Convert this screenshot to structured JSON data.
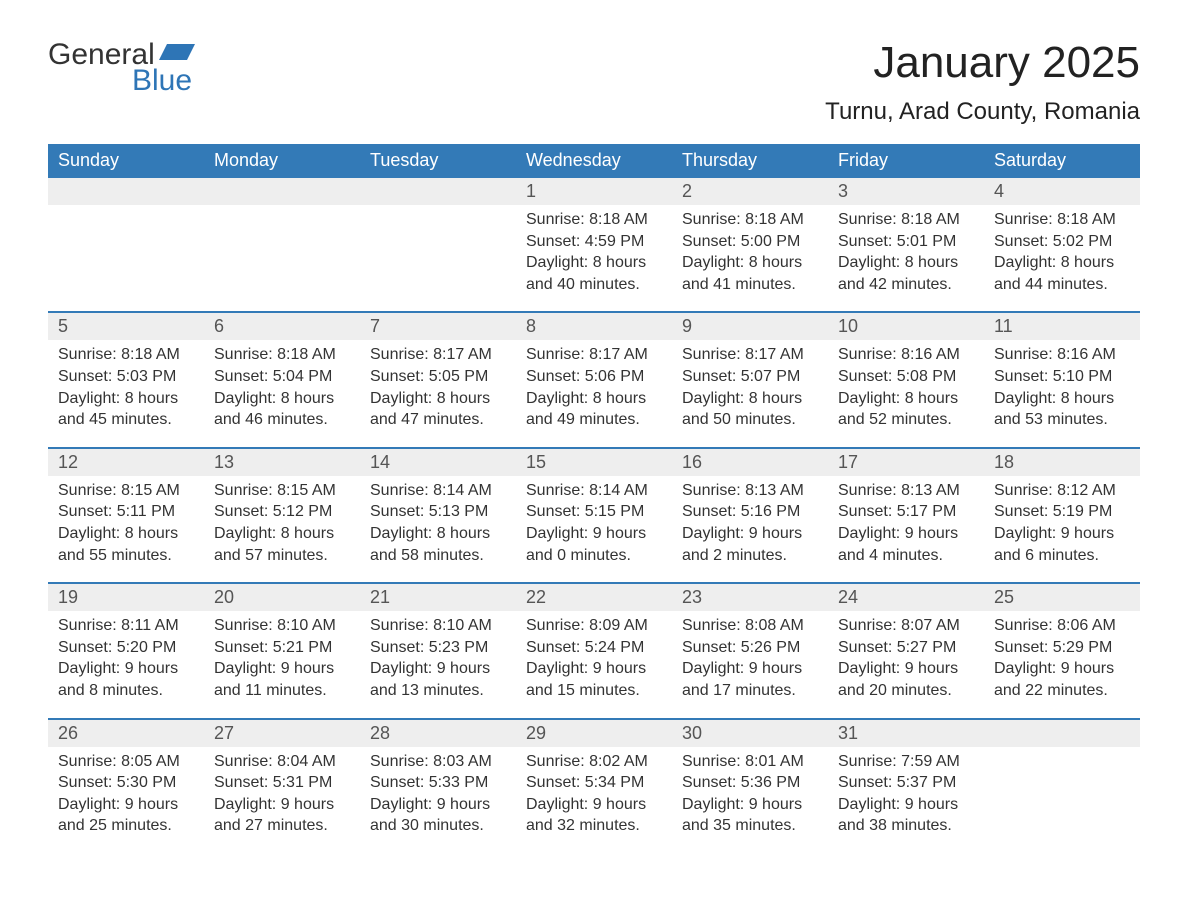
{
  "logo": {
    "word1": "General",
    "word2": "Blue"
  },
  "title": "January 2025",
  "location": "Turnu, Arad County, Romania",
  "colors": {
    "header_bg": "#337ab7",
    "header_text": "#ffffff",
    "daynum_bg": "#eeeeee",
    "divider": "#337ab7",
    "body_text": "#333333",
    "logo_blue": "#2e75b6"
  },
  "day_headers": [
    "Sunday",
    "Monday",
    "Tuesday",
    "Wednesday",
    "Thursday",
    "Friday",
    "Saturday"
  ],
  "weeks": [
    [
      {
        "blank": true
      },
      {
        "blank": true
      },
      {
        "blank": true
      },
      {
        "n": "1",
        "sr": "Sunrise: 8:18 AM",
        "ss": "Sunset: 4:59 PM",
        "d1": "Daylight: 8 hours",
        "d2": "and 40 minutes."
      },
      {
        "n": "2",
        "sr": "Sunrise: 8:18 AM",
        "ss": "Sunset: 5:00 PM",
        "d1": "Daylight: 8 hours",
        "d2": "and 41 minutes."
      },
      {
        "n": "3",
        "sr": "Sunrise: 8:18 AM",
        "ss": "Sunset: 5:01 PM",
        "d1": "Daylight: 8 hours",
        "d2": "and 42 minutes."
      },
      {
        "n": "4",
        "sr": "Sunrise: 8:18 AM",
        "ss": "Sunset: 5:02 PM",
        "d1": "Daylight: 8 hours",
        "d2": "and 44 minutes."
      }
    ],
    [
      {
        "n": "5",
        "sr": "Sunrise: 8:18 AM",
        "ss": "Sunset: 5:03 PM",
        "d1": "Daylight: 8 hours",
        "d2": "and 45 minutes."
      },
      {
        "n": "6",
        "sr": "Sunrise: 8:18 AM",
        "ss": "Sunset: 5:04 PM",
        "d1": "Daylight: 8 hours",
        "d2": "and 46 minutes."
      },
      {
        "n": "7",
        "sr": "Sunrise: 8:17 AM",
        "ss": "Sunset: 5:05 PM",
        "d1": "Daylight: 8 hours",
        "d2": "and 47 minutes."
      },
      {
        "n": "8",
        "sr": "Sunrise: 8:17 AM",
        "ss": "Sunset: 5:06 PM",
        "d1": "Daylight: 8 hours",
        "d2": "and 49 minutes."
      },
      {
        "n": "9",
        "sr": "Sunrise: 8:17 AM",
        "ss": "Sunset: 5:07 PM",
        "d1": "Daylight: 8 hours",
        "d2": "and 50 minutes."
      },
      {
        "n": "10",
        "sr": "Sunrise: 8:16 AM",
        "ss": "Sunset: 5:08 PM",
        "d1": "Daylight: 8 hours",
        "d2": "and 52 minutes."
      },
      {
        "n": "11",
        "sr": "Sunrise: 8:16 AM",
        "ss": "Sunset: 5:10 PM",
        "d1": "Daylight: 8 hours",
        "d2": "and 53 minutes."
      }
    ],
    [
      {
        "n": "12",
        "sr": "Sunrise: 8:15 AM",
        "ss": "Sunset: 5:11 PM",
        "d1": "Daylight: 8 hours",
        "d2": "and 55 minutes."
      },
      {
        "n": "13",
        "sr": "Sunrise: 8:15 AM",
        "ss": "Sunset: 5:12 PM",
        "d1": "Daylight: 8 hours",
        "d2": "and 57 minutes."
      },
      {
        "n": "14",
        "sr": "Sunrise: 8:14 AM",
        "ss": "Sunset: 5:13 PM",
        "d1": "Daylight: 8 hours",
        "d2": "and 58 minutes."
      },
      {
        "n": "15",
        "sr": "Sunrise: 8:14 AM",
        "ss": "Sunset: 5:15 PM",
        "d1": "Daylight: 9 hours",
        "d2": "and 0 minutes."
      },
      {
        "n": "16",
        "sr": "Sunrise: 8:13 AM",
        "ss": "Sunset: 5:16 PM",
        "d1": "Daylight: 9 hours",
        "d2": "and 2 minutes."
      },
      {
        "n": "17",
        "sr": "Sunrise: 8:13 AM",
        "ss": "Sunset: 5:17 PM",
        "d1": "Daylight: 9 hours",
        "d2": "and 4 minutes."
      },
      {
        "n": "18",
        "sr": "Sunrise: 8:12 AM",
        "ss": "Sunset: 5:19 PM",
        "d1": "Daylight: 9 hours",
        "d2": "and 6 minutes."
      }
    ],
    [
      {
        "n": "19",
        "sr": "Sunrise: 8:11 AM",
        "ss": "Sunset: 5:20 PM",
        "d1": "Daylight: 9 hours",
        "d2": "and 8 minutes."
      },
      {
        "n": "20",
        "sr": "Sunrise: 8:10 AM",
        "ss": "Sunset: 5:21 PM",
        "d1": "Daylight: 9 hours",
        "d2": "and 11 minutes."
      },
      {
        "n": "21",
        "sr": "Sunrise: 8:10 AM",
        "ss": "Sunset: 5:23 PM",
        "d1": "Daylight: 9 hours",
        "d2": "and 13 minutes."
      },
      {
        "n": "22",
        "sr": "Sunrise: 8:09 AM",
        "ss": "Sunset: 5:24 PM",
        "d1": "Daylight: 9 hours",
        "d2": "and 15 minutes."
      },
      {
        "n": "23",
        "sr": "Sunrise: 8:08 AM",
        "ss": "Sunset: 5:26 PM",
        "d1": "Daylight: 9 hours",
        "d2": "and 17 minutes."
      },
      {
        "n": "24",
        "sr": "Sunrise: 8:07 AM",
        "ss": "Sunset: 5:27 PM",
        "d1": "Daylight: 9 hours",
        "d2": "and 20 minutes."
      },
      {
        "n": "25",
        "sr": "Sunrise: 8:06 AM",
        "ss": "Sunset: 5:29 PM",
        "d1": "Daylight: 9 hours",
        "d2": "and 22 minutes."
      }
    ],
    [
      {
        "n": "26",
        "sr": "Sunrise: 8:05 AM",
        "ss": "Sunset: 5:30 PM",
        "d1": "Daylight: 9 hours",
        "d2": "and 25 minutes."
      },
      {
        "n": "27",
        "sr": "Sunrise: 8:04 AM",
        "ss": "Sunset: 5:31 PM",
        "d1": "Daylight: 9 hours",
        "d2": "and 27 minutes."
      },
      {
        "n": "28",
        "sr": "Sunrise: 8:03 AM",
        "ss": "Sunset: 5:33 PM",
        "d1": "Daylight: 9 hours",
        "d2": "and 30 minutes."
      },
      {
        "n": "29",
        "sr": "Sunrise: 8:02 AM",
        "ss": "Sunset: 5:34 PM",
        "d1": "Daylight: 9 hours",
        "d2": "and 32 minutes."
      },
      {
        "n": "30",
        "sr": "Sunrise: 8:01 AM",
        "ss": "Sunset: 5:36 PM",
        "d1": "Daylight: 9 hours",
        "d2": "and 35 minutes."
      },
      {
        "n": "31",
        "sr": "Sunrise: 7:59 AM",
        "ss": "Sunset: 5:37 PM",
        "d1": "Daylight: 9 hours",
        "d2": "and 38 minutes."
      },
      {
        "blank": true
      }
    ]
  ]
}
